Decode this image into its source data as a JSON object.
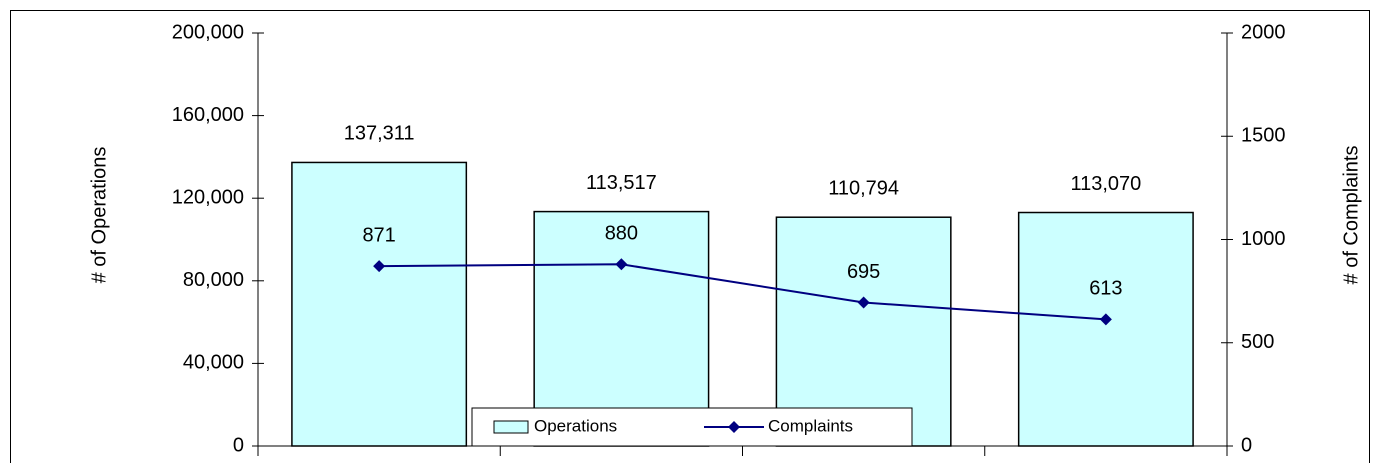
{
  "chart_data": {
    "type": "bar",
    "categories": [
      null,
      null,
      null,
      null
    ],
    "series": [
      {
        "name": "Operations",
        "color": "#ccffff",
        "values": [
          137311,
          113517,
          110794,
          113070
        ],
        "value_labels": [
          "137,311",
          "113,517",
          "110,794",
          "113,070"
        ]
      },
      {
        "name": "Complaints",
        "color": "#000080",
        "type": "line",
        "axis": "y2",
        "values": [
          871,
          880,
          695,
          613
        ]
      }
    ],
    "ylabel": "# of  Operations",
    "y2label": "# of Complaints",
    "ylim": [
      0,
      200000
    ],
    "yticks": [
      0,
      {
        "value": 40000,
        "label": "40,000"
      },
      {
        "value": 80000,
        "label": "80,000"
      },
      {
        "value": 120000,
        "label": "120,000"
      },
      {
        "value": 160000,
        "label": "160,000"
      },
      {
        "value": 200000,
        "label": "200,000"
      }
    ],
    "y2lim": [
      0,
      2000
    ],
    "y2ticks": [
      0,
      500,
      1000,
      1500,
      2000
    ],
    "legend": "bottom"
  }
}
